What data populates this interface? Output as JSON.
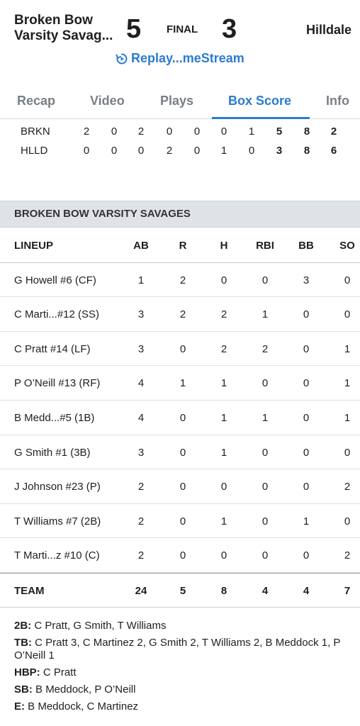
{
  "game": {
    "away_team_line1": "Broken Bow",
    "away_team_line2": "Varsity Savag...",
    "away_score": "5",
    "status": "FINAL",
    "home_score": "3",
    "home_team": "Hilldale",
    "replay_label": "Replay...meStream",
    "accent_color": "#2b7bd1"
  },
  "tabs": [
    {
      "label": "Recap",
      "active": false
    },
    {
      "label": "Video",
      "active": false
    },
    {
      "label": "Plays",
      "active": false
    },
    {
      "label": "Box Score",
      "active": true
    },
    {
      "label": "Info",
      "active": false
    }
  ],
  "linescore": [
    {
      "team": "BRKN",
      "innings": [
        "2",
        "0",
        "2",
        "0",
        "0",
        "0",
        "1"
      ],
      "r": "5",
      "h": "8",
      "e": "2"
    },
    {
      "team": "HLLD",
      "innings": [
        "0",
        "0",
        "0",
        "2",
        "0",
        "1",
        "0"
      ],
      "r": "3",
      "h": "8",
      "e": "6"
    }
  ],
  "box": {
    "section_title": "BROKEN BOW VARSITY SAVAGES",
    "headers": [
      "LINEUP",
      "AB",
      "R",
      "H",
      "RBI",
      "BB",
      "SO"
    ],
    "rows": [
      {
        "name": "G Howell #6 (CF)",
        "ab": "1",
        "r": "2",
        "h": "0",
        "rbi": "0",
        "bb": "3",
        "so": "0"
      },
      {
        "name": "C Marti...#12 (SS)",
        "ab": "3",
        "r": "2",
        "h": "2",
        "rbi": "1",
        "bb": "0",
        "so": "0"
      },
      {
        "name": "C Pratt #14 (LF)",
        "ab": "3",
        "r": "0",
        "h": "2",
        "rbi": "2",
        "bb": "0",
        "so": "1"
      },
      {
        "name": "P O’Neill #13 (RF)",
        "ab": "4",
        "r": "1",
        "h": "1",
        "rbi": "0",
        "bb": "0",
        "so": "1"
      },
      {
        "name": "B Medd...#5 (1B)",
        "ab": "4",
        "r": "0",
        "h": "1",
        "rbi": "1",
        "bb": "0",
        "so": "1"
      },
      {
        "name": "G Smith #1 (3B)",
        "ab": "3",
        "r": "0",
        "h": "1",
        "rbi": "0",
        "bb": "0",
        "so": "0"
      },
      {
        "name": "J Johnson #23 (P)",
        "ab": "2",
        "r": "0",
        "h": "0",
        "rbi": "0",
        "bb": "0",
        "so": "2"
      },
      {
        "name": "T Williams #7 (2B)",
        "ab": "2",
        "r": "0",
        "h": "1",
        "rbi": "0",
        "bb": "1",
        "so": "0"
      },
      {
        "name": "T Marti...z #10 (C)",
        "ab": "2",
        "r": "0",
        "h": "0",
        "rbi": "0",
        "bb": "0",
        "so": "2"
      }
    ],
    "team_row": {
      "name": "TEAM",
      "ab": "24",
      "r": "5",
      "h": "8",
      "rbi": "4",
      "bb": "4",
      "so": "7"
    }
  },
  "notes": [
    {
      "label": "2B:",
      "text": "C Pratt, G Smith, T Williams"
    },
    {
      "label": "TB:",
      "text": "C Pratt 3, C Martinez 2, G Smith 2, T Williams 2, B Meddock 1, P O’Neill 1"
    },
    {
      "label": "HBP:",
      "text": "C Pratt"
    },
    {
      "label": "SB:",
      "text": "B Meddock, P O’Neill"
    },
    {
      "label": "E:",
      "text": "B Meddock, C Martinez"
    }
  ]
}
